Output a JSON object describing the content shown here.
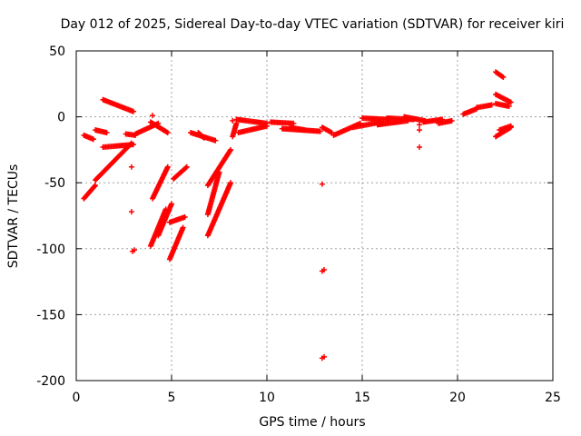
{
  "chart_data": {
    "type": "scatter",
    "title": "Day 012 of 2025, Sidereal Day-to-day VTEC variation (SDTVAR) for receiver kiri",
    "xlabel": "GPS time / hours",
    "ylabel": "SDTVAR / TECUs",
    "xlim": [
      0,
      25
    ],
    "ylim": [
      -200,
      50
    ],
    "xticks": [
      0,
      5,
      10,
      15,
      20,
      25
    ],
    "yticks": [
      50,
      0,
      -50,
      -100,
      -150,
      -200
    ],
    "xtick_labels": [
      "0",
      "5",
      "10",
      "15",
      "20",
      "25"
    ],
    "ytick_labels": [
      "50",
      "0",
      "-50",
      "-100",
      "-150",
      "-200"
    ],
    "grid": true,
    "marker": "+",
    "color": "#ff0000",
    "segments": [
      {
        "x0": 0.4,
        "y0": -62,
        "x1": 1.0,
        "y1": -52
      },
      {
        "x0": 1.0,
        "y0": -48,
        "x1": 2.9,
        "y1": -20
      },
      {
        "x0": 1.4,
        "y0": -23,
        "x1": 3.0,
        "y1": -21
      },
      {
        "x0": 0.4,
        "y0": -14,
        "x1": 0.9,
        "y1": -17
      },
      {
        "x0": 1.0,
        "y0": -10,
        "x1": 1.6,
        "y1": -12
      },
      {
        "x0": 1.4,
        "y0": 13,
        "x1": 3.0,
        "y1": 4
      },
      {
        "x0": 2.6,
        "y0": -13,
        "x1": 3.1,
        "y1": -14
      },
      {
        "x0": 3.1,
        "y0": -13,
        "x1": 4.3,
        "y1": -5
      },
      {
        "x0": 3.9,
        "y0": -4,
        "x1": 4.8,
        "y1": -12
      },
      {
        "x0": 3.9,
        "y0": -98,
        "x1": 4.7,
        "y1": -70
      },
      {
        "x0": 4.0,
        "y0": -62,
        "x1": 4.8,
        "y1": -38
      },
      {
        "x0": 4.9,
        "y0": -108,
        "x1": 5.6,
        "y1": -84
      },
      {
        "x0": 4.3,
        "y0": -90,
        "x1": 5.0,
        "y1": -66
      },
      {
        "x0": 4.9,
        "y0": -80,
        "x1": 5.7,
        "y1": -76
      },
      {
        "x0": 5.1,
        "y0": -47,
        "x1": 5.8,
        "y1": -38
      },
      {
        "x0": 6.0,
        "y0": -12,
        "x1": 7.3,
        "y1": -18
      },
      {
        "x0": 6.4,
        "y0": -12,
        "x1": 6.7,
        "y1": -16
      },
      {
        "x0": 6.9,
        "y0": -90,
        "x1": 8.1,
        "y1": -50
      },
      {
        "x0": 6.9,
        "y0": -74,
        "x1": 7.5,
        "y1": -42
      },
      {
        "x0": 6.9,
        "y0": -52,
        "x1": 8.1,
        "y1": -25
      },
      {
        "x0": 8.2,
        "y0": -15,
        "x1": 8.4,
        "y1": -5
      },
      {
        "x0": 8.4,
        "y0": -2,
        "x1": 10.0,
        "y1": -5
      },
      {
        "x0": 8.5,
        "y0": -12,
        "x1": 10.0,
        "y1": -7
      },
      {
        "x0": 10.2,
        "y0": -4,
        "x1": 11.4,
        "y1": -5
      },
      {
        "x0": 10.8,
        "y0": -9,
        "x1": 12.8,
        "y1": -11
      },
      {
        "x0": 11.2,
        "y0": -8,
        "x1": 12.0,
        "y1": -10
      },
      {
        "x0": 12.9,
        "y0": -8,
        "x1": 13.4,
        "y1": -12
      },
      {
        "x0": 13.5,
        "y0": -14,
        "x1": 14.9,
        "y1": -5
      },
      {
        "x0": 14.5,
        "y0": -8,
        "x1": 16.0,
        "y1": -4
      },
      {
        "x0": 15.0,
        "y0": -1,
        "x1": 16.4,
        "y1": -2
      },
      {
        "x0": 15.8,
        "y0": -6,
        "x1": 17.4,
        "y1": -3
      },
      {
        "x0": 16.3,
        "y0": -1,
        "x1": 17.7,
        "y1": -2
      },
      {
        "x0": 17.2,
        "y0": 0,
        "x1": 18.3,
        "y1": -3
      },
      {
        "x0": 18.2,
        "y0": -4,
        "x1": 19.2,
        "y1": -2
      },
      {
        "x0": 19.0,
        "y0": -5,
        "x1": 19.7,
        "y1": -3
      },
      {
        "x0": 20.3,
        "y0": 2,
        "x1": 21.0,
        "y1": 6
      },
      {
        "x0": 21.0,
        "y0": 7,
        "x1": 21.8,
        "y1": 9
      },
      {
        "x0": 22.0,
        "y0": 34,
        "x1": 22.4,
        "y1": 30
      },
      {
        "x0": 22.0,
        "y0": 17,
        "x1": 22.8,
        "y1": 11
      },
      {
        "x0": 22.0,
        "y0": 10,
        "x1": 22.7,
        "y1": 8
      },
      {
        "x0": 22.0,
        "y0": -15,
        "x1": 22.8,
        "y1": -8
      },
      {
        "x0": 22.2,
        "y0": -10,
        "x1": 22.8,
        "y1": -7
      }
    ],
    "isolated_points": [
      {
        "x": 2.9,
        "y": -38
      },
      {
        "x": 2.9,
        "y": -72
      },
      {
        "x": 2.95,
        "y": -102
      },
      {
        "x": 3.05,
        "y": -101
      },
      {
        "x": 4.0,
        "y": 1
      },
      {
        "x": 8.2,
        "y": -3
      },
      {
        "x": 12.9,
        "y": -51
      },
      {
        "x": 12.9,
        "y": -117
      },
      {
        "x": 13.0,
        "y": -116
      },
      {
        "x": 12.9,
        "y": -183
      },
      {
        "x": 13.0,
        "y": -182
      },
      {
        "x": 18.0,
        "y": -23
      },
      {
        "x": 18.0,
        "y": -10
      },
      {
        "x": 18.0,
        "y": -6
      }
    ]
  }
}
